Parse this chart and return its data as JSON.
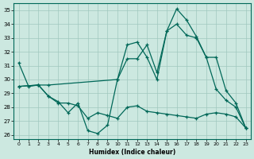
{
  "xlabel": "Humidex (Indice chaleur)",
  "bg_color": "#cce8e0",
  "grid_color": "#a0c8be",
  "line_color": "#006858",
  "xlim": [
    -0.5,
    23.5
  ],
  "ylim": [
    25.7,
    35.5
  ],
  "yticks": [
    26,
    27,
    28,
    29,
    30,
    31,
    32,
    33,
    34,
    35
  ],
  "xticks": [
    0,
    1,
    2,
    3,
    4,
    5,
    6,
    7,
    8,
    9,
    10,
    11,
    12,
    13,
    14,
    15,
    16,
    17,
    18,
    19,
    20,
    21,
    22,
    23
  ],
  "line1_x": [
    0,
    1,
    2,
    3,
    4,
    5,
    6,
    7,
    8,
    9,
    10,
    11,
    12,
    13,
    14,
    15,
    16,
    17,
    18,
    19,
    20,
    21,
    22,
    23
  ],
  "line1_y": [
    31.2,
    29.5,
    29.6,
    28.8,
    28.4,
    27.6,
    28.3,
    26.3,
    26.1,
    26.7,
    30.0,
    32.5,
    32.7,
    31.6,
    30.0,
    33.5,
    35.1,
    34.3,
    33.1,
    31.6,
    29.3,
    28.5,
    28.0,
    26.5
  ],
  "line2_x": [
    0,
    2,
    3,
    10,
    11,
    12,
    13,
    14,
    15,
    16,
    17,
    18,
    19,
    20,
    21,
    22,
    23
  ],
  "line2_y": [
    29.5,
    29.6,
    29.6,
    30.0,
    31.5,
    31.5,
    32.5,
    30.5,
    33.5,
    34.0,
    33.2,
    33.0,
    31.6,
    31.6,
    29.2,
    28.3,
    26.5
  ],
  "line3_x": [
    0,
    2,
    3,
    4,
    5,
    6,
    7,
    8,
    9,
    10,
    11,
    12,
    13,
    14,
    15,
    16,
    17,
    18,
    19,
    20,
    21,
    22,
    23
  ],
  "line3_y": [
    29.5,
    29.6,
    28.8,
    28.3,
    28.3,
    28.1,
    27.2,
    27.6,
    27.4,
    27.2,
    28.0,
    28.1,
    27.7,
    27.6,
    27.5,
    27.4,
    27.3,
    27.2,
    27.5,
    27.6,
    27.5,
    27.3,
    26.5
  ]
}
